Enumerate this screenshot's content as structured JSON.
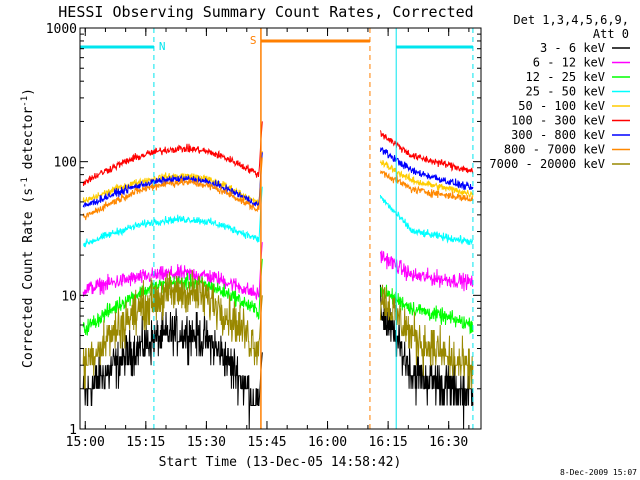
{
  "chart_data": {
    "type": "line",
    "title": "HESSI Observing Summary Count Rates, Corrected",
    "xlabel": "Start Time (13-Dec-05 14:58:42)",
    "ylabel_main": "Corrected Count Rate (s",
    "ylabel_sup1": "-1",
    "ylabel_mid": " detector",
    "ylabel_sup2": "-1",
    "ylabel_end": ")",
    "yscale": "log",
    "ylim": [
      1,
      1000
    ],
    "xlim": [
      "14:58:42",
      "16:38:00"
    ],
    "x_ticks": [
      {
        "t": "15:00",
        "label": "15:00"
      },
      {
        "t": "15:15",
        "label": "15:15"
      },
      {
        "t": "15:30",
        "label": "15:30"
      },
      {
        "t": "15:45",
        "label": "15:45"
      },
      {
        "t": "16:00",
        "label": "16:00"
      },
      {
        "t": "16:15",
        "label": "16:15"
      },
      {
        "t": "16:30",
        "label": "16:30"
      }
    ],
    "y_ticks": [
      {
        "v": 1,
        "label": "1"
      },
      {
        "v": 10,
        "label": "10"
      },
      {
        "v": 100,
        "label": "100"
      },
      {
        "v": 1000,
        "label": "1000"
      }
    ],
    "legend_header": [
      "Det 1,3,4,5,6,9,",
      "Att 0"
    ],
    "legend_placement": "right",
    "series": [
      {
        "name": "3 - 6 keV",
        "color": "#000000",
        "pre": {
          "start": 1.8,
          "peak": 5.2,
          "end": 1.5
        },
        "post": {
          "start": 8,
          "mid": 2.6,
          "end": 1.8
        }
      },
      {
        "name": "6 - 12 keV",
        "color": "#ff00ff",
        "pre": {
          "start": 11,
          "peak": 14.5,
          "end": 10
        },
        "post": {
          "start": 20,
          "mid": 14,
          "end": 12.5
        }
      },
      {
        "name": "12 - 25 keV",
        "color": "#00ff00",
        "pre": {
          "start": 5.5,
          "peak": 12.5,
          "end": 7.5
        },
        "post": {
          "start": 11,
          "mid": 8,
          "end": 6
        }
      },
      {
        "name": "25 - 50 keV",
        "color": "#00ffff",
        "pre": {
          "start": 24,
          "peak": 37,
          "end": 26
        },
        "post": {
          "start": 55,
          "mid": 30,
          "end": 25
        }
      },
      {
        "name": "50 - 100 keV",
        "color": "#ffcc00",
        "pre": {
          "start": 50,
          "peak": 78,
          "end": 48
        },
        "post": {
          "start": 100,
          "mid": 72,
          "end": 57
        }
      },
      {
        "name": "100 - 300 keV",
        "color": "#ff0000",
        "pre": {
          "start": 70,
          "peak": 125,
          "end": 80
        },
        "post": {
          "start": 165,
          "mid": 110,
          "end": 85
        }
      },
      {
        "name": "300 - 800 keV",
        "color": "#0000ff",
        "pre": {
          "start": 46,
          "peak": 74,
          "end": 47
        },
        "post": {
          "start": 125,
          "mid": 85,
          "end": 63
        }
      },
      {
        "name": "800 - 7000 keV",
        "color": "#ff8800",
        "pre": {
          "start": 38,
          "peak": 70,
          "end": 43
        },
        "post": {
          "start": 85,
          "mid": 62,
          "end": 52
        }
      },
      {
        "name": "7000 - 20000 keV",
        "color": "#998800",
        "pre": {
          "start": 3,
          "peak": 10.5,
          "end": 4
        },
        "post": {
          "start": 10,
          "mid": 5,
          "end": 2.6
        }
      }
    ],
    "night_intervals": [
      {
        "label": "N",
        "color": "#00e5ee",
        "start": "14:58:42",
        "end": "15:17:00"
      },
      {
        "label": "",
        "color": "#00e5ee",
        "start": "16:17:00",
        "end": "16:36:00"
      }
    ],
    "saa_intervals": [
      {
        "label": "S",
        "color": "#ff7f00",
        "start": "15:43:30",
        "end": "16:10:30"
      }
    ],
    "gap": {
      "start": "15:44:00",
      "end": "16:13:00"
    },
    "footer_date": "8-Dec-2009 15:07"
  }
}
